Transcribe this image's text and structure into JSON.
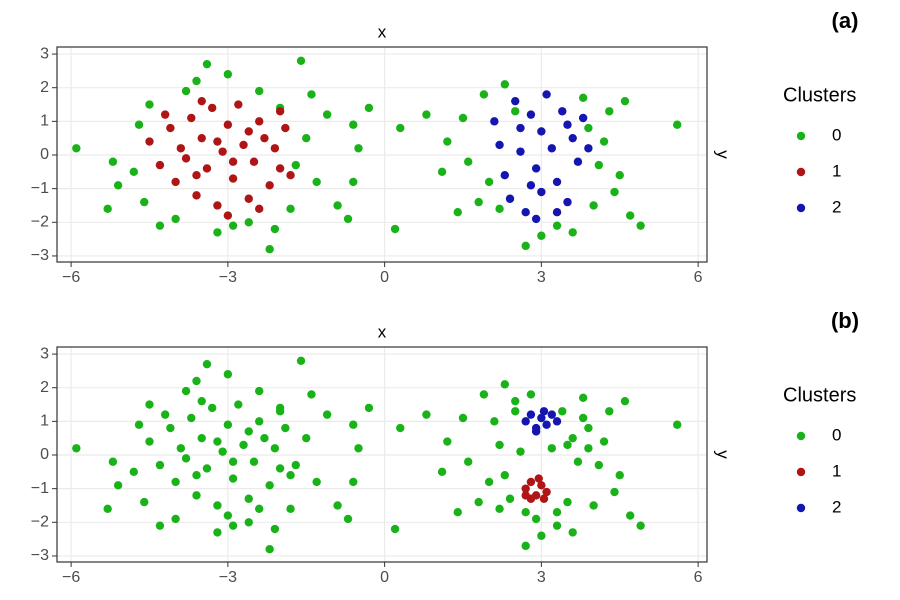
{
  "chart_data": [
    {
      "type": "scatter",
      "title": "(a)",
      "x_label": "x",
      "y_label": "y",
      "legend_title": "Clusters",
      "legend": "right",
      "grid": true,
      "xlim": [
        -6.27,
        6.17
      ],
      "ylim": [
        -3.18,
        3.21
      ],
      "xticks": [
        {
          "value": -6,
          "label": "−6"
        },
        {
          "value": -3,
          "label": "−3"
        },
        0,
        3,
        6
      ],
      "yticks": [
        {
          "value": -3,
          "label": "−3"
        },
        {
          "value": -2,
          "label": "−2"
        },
        {
          "value": -1,
          "label": "−1"
        },
        0,
        1,
        2,
        3
      ],
      "series": [
        {
          "name": "0",
          "color": "#19b319",
          "x": [
            -5.9,
            -5.3,
            -5.2,
            -5.1,
            -4.6,
            -4.7,
            -4.5,
            -4.3,
            -4.0,
            -3.8,
            -3.6,
            -3.4,
            -3.0,
            -2.9,
            -2.6,
            -2.4,
            -2.2,
            -2.0,
            -1.8,
            -1.6,
            -1.5,
            -1.3,
            -1.1,
            -0.9,
            -0.7,
            -0.6,
            -0.5,
            -0.6,
            -0.3,
            -1.7,
            -4.8,
            -3.2,
            -2.1,
            -1.4,
            0.2,
            0.3,
            0.8,
            1.1,
            1.2,
            1.4,
            1.5,
            1.6,
            1.8,
            1.9,
            2.0,
            2.2,
            2.3,
            2.7,
            3.0,
            3.3,
            3.6,
            3.8,
            4.0,
            4.2,
            4.3,
            4.5,
            4.6,
            4.7,
            4.9,
            5.6,
            4.1,
            2.5,
            3.9,
            4.4
          ],
          "values": [
            0.2,
            -1.6,
            -0.2,
            -0.9,
            -1.4,
            0.9,
            1.5,
            -2.1,
            -1.9,
            1.9,
            2.2,
            2.7,
            2.4,
            -2.1,
            -2.0,
            1.9,
            -2.8,
            1.4,
            -1.6,
            2.8,
            0.5,
            -0.8,
            1.2,
            -1.5,
            -1.9,
            0.9,
            0.2,
            -0.8,
            1.4,
            -0.3,
            -0.5,
            -2.3,
            -2.2,
            1.8,
            -2.2,
            0.8,
            1.2,
            -0.5,
            0.4,
            -1.7,
            1.1,
            -0.2,
            -1.4,
            1.8,
            -0.8,
            -1.6,
            2.1,
            -2.7,
            -2.4,
            -2.1,
            -2.3,
            1.7,
            -1.5,
            0.4,
            1.3,
            -0.6,
            1.6,
            -1.8,
            -2.1,
            0.9,
            -0.3,
            1.3,
            0.8,
            -1.1
          ]
        },
        {
          "name": "1",
          "color": "#b01515",
          "x": [
            -4.5,
            -4.3,
            -4.1,
            -4.0,
            -3.9,
            -3.7,
            -3.6,
            -3.5,
            -3.4,
            -3.3,
            -3.2,
            -3.1,
            -3.0,
            -2.9,
            -2.8,
            -2.7,
            -2.6,
            -2.5,
            -2.4,
            -2.3,
            -2.2,
            -2.1,
            -2.0,
            -1.9,
            -1.8,
            -3.8,
            -3.5,
            -3.0,
            -2.6,
            -3.2,
            -2.9,
            -3.6,
            -2.4,
            -4.2,
            -2.0
          ],
          "values": [
            0.4,
            -0.3,
            0.8,
            -0.8,
            0.2,
            1.1,
            -1.2,
            0.5,
            -0.4,
            1.4,
            -1.5,
            0.1,
            0.9,
            -0.7,
            1.5,
            0.3,
            -1.3,
            -0.2,
            1.0,
            0.5,
            -0.9,
            0.2,
            -0.4,
            0.8,
            -0.6,
            -0.1,
            1.6,
            -1.8,
            0.7,
            0.4,
            -0.2,
            -0.6,
            -1.6,
            1.2,
            1.3
          ]
        },
        {
          "name": "2",
          "color": "#1515b0",
          "x": [
            2.1,
            2.2,
            2.3,
            2.4,
            2.5,
            2.6,
            2.7,
            2.8,
            2.9,
            3.0,
            3.0,
            3.1,
            3.2,
            3.3,
            3.4,
            3.5,
            3.6,
            3.7,
            3.8,
            3.9,
            2.9,
            3.3,
            2.6,
            3.5,
            2.8
          ],
          "values": [
            1.0,
            0.3,
            -0.6,
            -1.3,
            1.6,
            0.1,
            -1.7,
            1.2,
            -0.4,
            0.7,
            -1.1,
            1.8,
            0.2,
            -0.8,
            1.3,
            -1.4,
            0.5,
            -0.2,
            1.1,
            0.2,
            -1.9,
            -1.7,
            0.8,
            0.9,
            -0.9
          ]
        }
      ]
    },
    {
      "type": "scatter",
      "title": "(b)",
      "x_label": "x",
      "y_label": "y",
      "legend_title": "Clusters",
      "legend": "right",
      "grid": true,
      "xlim": [
        -6.27,
        6.17
      ],
      "ylim": [
        -3.18,
        3.21
      ],
      "xticks": [
        {
          "value": -6,
          "label": "−6"
        },
        {
          "value": -3,
          "label": "−3"
        },
        0,
        3,
        6
      ],
      "yticks": [
        {
          "value": -3,
          "label": "−3"
        },
        {
          "value": -2,
          "label": "−2"
        },
        {
          "value": -1,
          "label": "−1"
        },
        0,
        1,
        2,
        3
      ],
      "series": [
        {
          "name": "0",
          "color": "#19b319",
          "x": [
            -5.9,
            -5.3,
            -5.2,
            -5.1,
            -4.6,
            -4.7,
            -4.5,
            -4.3,
            -4.0,
            -3.8,
            -3.6,
            -3.4,
            -3.0,
            -2.9,
            -2.6,
            -2.4,
            -2.2,
            -2.0,
            -1.8,
            -1.6,
            -1.5,
            -1.3,
            -1.1,
            -0.9,
            -0.7,
            -0.6,
            -0.5,
            -0.6,
            -0.3,
            -1.7,
            -4.8,
            -3.2,
            -2.1,
            -1.4,
            0.2,
            0.3,
            0.8,
            1.1,
            1.2,
            1.4,
            1.5,
            1.6,
            1.8,
            1.9,
            2.0,
            2.2,
            2.3,
            2.7,
            3.0,
            3.3,
            3.6,
            3.8,
            4.0,
            4.2,
            4.3,
            4.5,
            4.6,
            4.7,
            4.9,
            5.6,
            4.1,
            2.5,
            3.9,
            4.4,
            -4.5,
            -4.3,
            -4.1,
            -4.0,
            -3.9,
            -3.7,
            -3.6,
            -3.5,
            -3.4,
            -3.3,
            -3.2,
            -3.1,
            -3.0,
            -2.9,
            -2.8,
            -2.7,
            -2.6,
            -2.5,
            -2.4,
            -2.3,
            -2.2,
            -2.1,
            -2.0,
            -1.9,
            -1.8,
            -3.8,
            -3.5,
            -3.0,
            -2.6,
            -3.2,
            -2.9,
            -3.6,
            -2.4,
            -4.2,
            -2.0,
            2.1,
            2.2,
            2.3,
            2.4,
            2.5,
            2.6,
            2.7,
            2.8,
            3.2,
            3.4,
            3.5,
            3.6,
            3.7,
            3.8,
            3.9,
            2.9,
            3.3,
            3.5
          ],
          "values": [
            0.2,
            -1.6,
            -0.2,
            -0.9,
            -1.4,
            0.9,
            1.5,
            -2.1,
            -1.9,
            1.9,
            2.2,
            2.7,
            2.4,
            -2.1,
            -2.0,
            1.9,
            -2.8,
            1.4,
            -1.6,
            2.8,
            0.5,
            -0.8,
            1.2,
            -1.5,
            -1.9,
            0.9,
            0.2,
            -0.8,
            1.4,
            -0.3,
            -0.5,
            -2.3,
            -2.2,
            1.8,
            -2.2,
            0.8,
            1.2,
            -0.5,
            0.4,
            -1.7,
            1.1,
            -0.2,
            -1.4,
            1.8,
            -0.8,
            -1.6,
            2.1,
            -2.7,
            -2.4,
            -2.1,
            -2.3,
            1.7,
            -1.5,
            0.4,
            1.3,
            -0.6,
            1.6,
            -1.8,
            -2.1,
            0.9,
            -0.3,
            1.3,
            0.8,
            -1.1,
            0.4,
            -0.3,
            0.8,
            -0.8,
            0.2,
            1.1,
            -1.2,
            0.5,
            -0.4,
            1.4,
            -1.5,
            0.1,
            0.9,
            -0.7,
            1.5,
            0.3,
            -1.3,
            -0.2,
            1.0,
            0.5,
            -0.9,
            0.2,
            -0.4,
            0.8,
            -0.6,
            -0.1,
            1.6,
            -1.8,
            0.7,
            0.4,
            -0.2,
            -0.6,
            -1.6,
            1.2,
            1.3,
            1.0,
            0.3,
            -0.6,
            -1.3,
            1.6,
            0.1,
            -1.7,
            1.8,
            0.2,
            1.3,
            -1.4,
            0.5,
            -0.2,
            1.1,
            0.2,
            -1.9,
            -1.7,
            0.3
          ]
        },
        {
          "name": "1",
          "color": "#b01515",
          "x": [
            2.7,
            2.8,
            2.9,
            3.0,
            3.1,
            2.8,
            2.95,
            2.7,
            3.05
          ],
          "values": [
            -1.0,
            -0.8,
            -1.2,
            -0.9,
            -1.1,
            -1.3,
            -0.7,
            -1.2,
            -1.3
          ]
        },
        {
          "name": "2",
          "color": "#1515b0",
          "x": [
            2.7,
            2.8,
            2.9,
            3.0,
            3.1,
            3.2,
            3.3,
            2.9,
            3.05
          ],
          "values": [
            1.0,
            1.2,
            0.8,
            1.1,
            0.9,
            1.2,
            1.0,
            0.7,
            1.3
          ]
        }
      ]
    }
  ]
}
